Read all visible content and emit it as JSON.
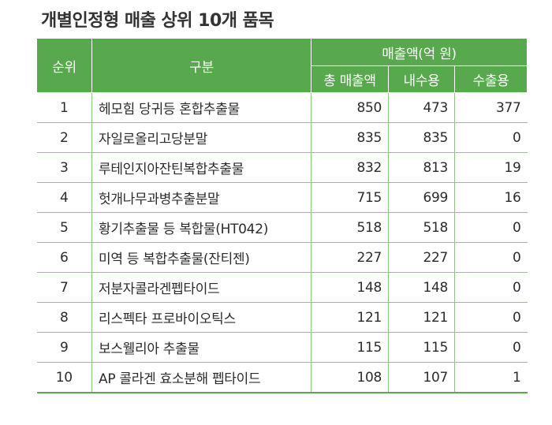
{
  "title": "개별인정형 매출 상위 10개 품목",
  "header": {
    "rank": "순위",
    "category": "구분",
    "sales_group": "매출액(억 원)",
    "total": "총 매출액",
    "domestic": "내수용",
    "export": "수출용"
  },
  "colors": {
    "header_bg": "#58a84e",
    "row_divider": "#8fc584"
  },
  "rows": [
    {
      "rank": "1",
      "name": "헤모힘 당귀등 혼합추출물",
      "total": "850",
      "domestic": "473",
      "export": "377"
    },
    {
      "rank": "2",
      "name": "자일로올리고당분말",
      "total": "835",
      "domestic": "835",
      "export": "0"
    },
    {
      "rank": "3",
      "name": "루테인지아잔틴복합추출물",
      "total": "832",
      "domestic": "813",
      "export": "19"
    },
    {
      "rank": "4",
      "name": "헛개나무과병추출분말",
      "total": "715",
      "domestic": "699",
      "export": "16"
    },
    {
      "rank": "5",
      "name": "황기추출물 등 복합물(HT042)",
      "total": "518",
      "domestic": "518",
      "export": "0"
    },
    {
      "rank": "6",
      "name": "미역 등 복합추출물(잔티젠)",
      "total": "227",
      "domestic": "227",
      "export": "0"
    },
    {
      "rank": "7",
      "name": "저분자콜라겐펩타이드",
      "total": "148",
      "domestic": "148",
      "export": "0"
    },
    {
      "rank": "8",
      "name": "리스펙타 프로바이오틱스",
      "total": "121",
      "domestic": "121",
      "export": "0"
    },
    {
      "rank": "9",
      "name": "보스웰리아 추출물",
      "total": "115",
      "domestic": "115",
      "export": "0"
    },
    {
      "rank": "10",
      "name": "AP 콜라겐 효소분해 펩타이드",
      "total": "108",
      "domestic": "107",
      "export": "1"
    }
  ]
}
